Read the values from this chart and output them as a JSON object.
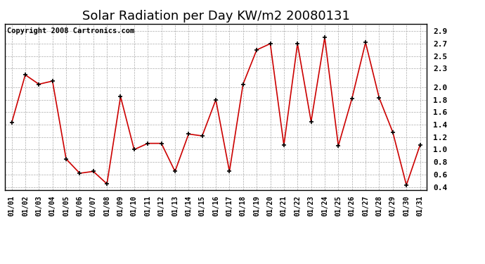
{
  "title": "Solar Radiation per Day KW/m2 20080131",
  "copyright": "Copyright 2008 Cartronics.com",
  "dates": [
    "01/01",
    "01/02",
    "01/03",
    "01/04",
    "01/05",
    "01/06",
    "01/07",
    "01/08",
    "01/09",
    "01/10",
    "01/11",
    "01/12",
    "01/13",
    "01/14",
    "01/15",
    "01/16",
    "01/17",
    "01/18",
    "01/19",
    "01/20",
    "01/21",
    "01/22",
    "01/23",
    "01/24",
    "01/25",
    "01/26",
    "01/27",
    "01/28",
    "01/29",
    "01/30",
    "01/31"
  ],
  "values": [
    1.43,
    2.2,
    2.05,
    2.1,
    0.85,
    0.62,
    0.65,
    0.45,
    1.85,
    1.0,
    1.1,
    1.1,
    0.65,
    1.25,
    1.22,
    1.8,
    0.65,
    2.05,
    2.6,
    2.7,
    1.07,
    2.7,
    1.45,
    2.8,
    1.06,
    1.82,
    2.72,
    1.83,
    1.28,
    0.43,
    1.07
  ],
  "line_color": "#cc0000",
  "marker_color": "#000000",
  "yticks": [
    0.4,
    0.6,
    0.8,
    1.0,
    1.2,
    1.4,
    1.6,
    1.8,
    2.0,
    2.3,
    2.5,
    2.7,
    2.9
  ],
  "bg_color": "#ffffff",
  "grid_color": "#aaaaaa",
  "title_fontsize": 13,
  "copyright_fontsize": 7.5
}
